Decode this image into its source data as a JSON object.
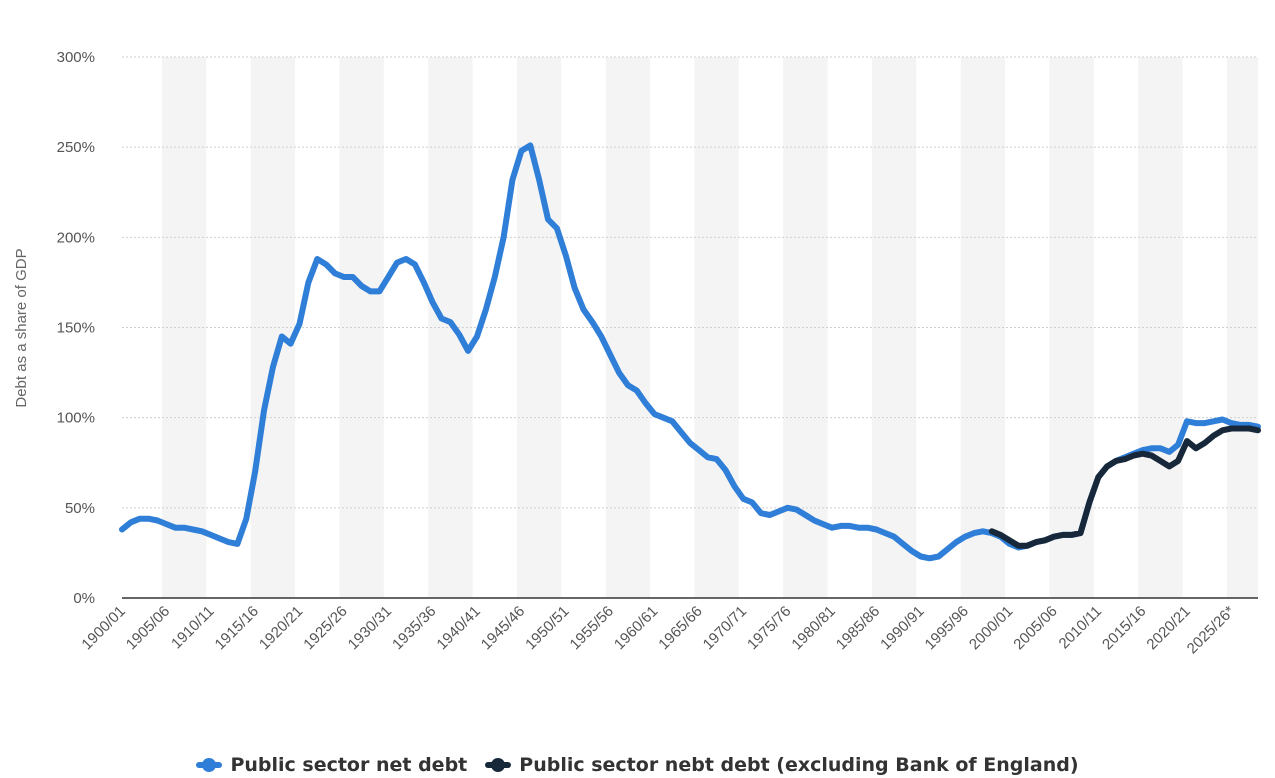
{
  "chart_data": {
    "type": "line",
    "ylabel": "Debt as a share of GDP",
    "ylim": [
      0,
      300
    ],
    "yticks": [
      "0%",
      "50%",
      "100%",
      "150%",
      "200%",
      "250%",
      "300%"
    ],
    "ytick_values": [
      0,
      50,
      100,
      150,
      200,
      250,
      300
    ],
    "x_categories": [
      "1900/01",
      "1901/02",
      "1902/03",
      "1903/04",
      "1904/05",
      "1905/06",
      "1906/07",
      "1907/08",
      "1908/09",
      "1909/10",
      "1910/11",
      "1911/12",
      "1912/13",
      "1913/14",
      "1914/15",
      "1915/16",
      "1916/17",
      "1917/18",
      "1918/19",
      "1919/20",
      "1920/21",
      "1921/22",
      "1922/23",
      "1923/24",
      "1924/25",
      "1925/26",
      "1926/27",
      "1927/28",
      "1928/29",
      "1929/30",
      "1930/31",
      "1931/32",
      "1932/33",
      "1933/34",
      "1934/35",
      "1935/36",
      "1936/37",
      "1937/38",
      "1938/39",
      "1939/40",
      "1940/41",
      "1941/42",
      "1942/43",
      "1943/44",
      "1944/45",
      "1945/46",
      "1946/47",
      "1947/48",
      "1948/49",
      "1949/50",
      "1950/51",
      "1951/52",
      "1952/53",
      "1953/54",
      "1954/55",
      "1955/56",
      "1956/57",
      "1957/58",
      "1958/59",
      "1959/60",
      "1960/61",
      "1961/62",
      "1962/63",
      "1963/64",
      "1964/65",
      "1965/66",
      "1966/67",
      "1967/68",
      "1968/69",
      "1969/70",
      "1970/71",
      "1971/72",
      "1972/73",
      "1973/74",
      "1974/75",
      "1975/76",
      "1976/77",
      "1977/78",
      "1978/79",
      "1979/80",
      "1980/81",
      "1981/82",
      "1982/83",
      "1983/84",
      "1984/85",
      "1985/86",
      "1986/87",
      "1987/88",
      "1988/89",
      "1989/90",
      "1990/91",
      "1991/92",
      "1992/93",
      "1993/94",
      "1994/95",
      "1995/96",
      "1996/97",
      "1997/98",
      "1998/99",
      "1999/00",
      "2000/01",
      "2001/02",
      "2002/03",
      "2003/04",
      "2004/05",
      "2005/06",
      "2006/07",
      "2007/08",
      "2008/09",
      "2009/10",
      "2010/11",
      "2011/12",
      "2012/13",
      "2013/14",
      "2014/15",
      "2015/16",
      "2016/17",
      "2017/18",
      "2018/19",
      "2019/20",
      "2020/21",
      "2021/22",
      "2022/23",
      "2023/24",
      "2024/25",
      "2025/26*",
      "2026/27*",
      "2027/28*",
      "2028/29*"
    ],
    "x_tick_labels": [
      "1900/01",
      "1905/06",
      "1910/11",
      "1915/16",
      "1920/21",
      "1925/26",
      "1930/31",
      "1935/36",
      "1940/41",
      "1945/46",
      "1950/51",
      "1955/56",
      "1960/61",
      "1965/66",
      "1970/71",
      "1975/76",
      "1980/81",
      "1985/86",
      "1990/91",
      "1995/96",
      "2000/01",
      "2005/06",
      "2010/11",
      "2015/16",
      "2020/21",
      "2025/26*"
    ],
    "grid": true,
    "legend_position": "bottom",
    "series": [
      {
        "name": "Public sector net debt",
        "color": "#2f7ed8",
        "start_index": 0,
        "values": [
          38,
          42,
          44,
          44,
          43,
          41,
          39,
          39,
          38,
          37,
          35,
          33,
          31,
          30,
          44,
          70,
          104,
          128,
          145,
          141,
          152,
          175,
          188,
          185,
          180,
          178,
          178,
          173,
          170,
          170,
          178,
          186,
          188,
          185,
          175,
          164,
          155,
          153,
          146,
          137,
          145,
          160,
          178,
          200,
          232,
          248,
          251,
          232,
          210,
          205,
          190,
          172,
          160,
          153,
          145,
          135,
          125,
          118,
          115,
          108,
          102,
          100,
          98,
          92,
          86,
          82,
          78,
          77,
          71,
          62,
          55,
          53,
          47,
          46,
          48,
          50,
          49,
          46,
          43,
          41,
          39,
          40,
          40,
          39,
          39,
          38,
          36,
          34,
          30,
          26,
          23,
          22,
          23,
          27,
          31,
          34,
          36,
          37,
          36,
          34,
          30,
          28,
          29,
          31,
          32,
          34,
          35,
          35,
          36,
          53,
          67,
          73,
          76,
          78,
          80,
          82,
          83,
          83,
          81,
          85,
          98,
          97,
          97,
          98,
          99,
          97,
          96,
          96,
          95
        ]
      },
      {
        "name": "Public sector nebt debt (excluding Bank of England)",
        "color": "#17283a",
        "start_index": 98,
        "values": [
          37,
          35,
          32,
          29,
          29,
          31,
          32,
          34,
          35,
          35,
          36,
          53,
          67,
          73,
          76,
          77,
          79,
          80,
          79,
          76,
          73,
          76,
          87,
          83,
          86,
          90,
          93,
          94,
          94,
          94,
          93
        ]
      }
    ]
  }
}
